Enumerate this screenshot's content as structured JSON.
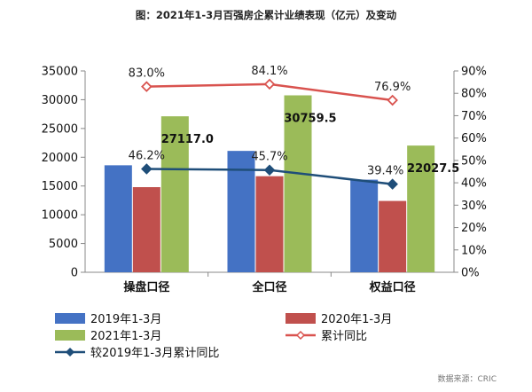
{
  "chart_data": {
    "type": "bar",
    "title": "图：2021年1-3月百强房企累计业绩表现（亿元）及变动",
    "categories": [
      "操盘口径",
      "全口径",
      "权益口径"
    ],
    "series": [
      {
        "name": "2019年1-3月",
        "kind": "bar",
        "axis": "left",
        "color": "#4472C4",
        "values": [
          18600,
          21100,
          16100
        ]
      },
      {
        "name": "2020年1-3月",
        "kind": "bar",
        "axis": "left",
        "color": "#C0504D",
        "values": [
          14800,
          16700,
          12400
        ]
      },
      {
        "name": "2021年1-3月",
        "kind": "bar",
        "axis": "left",
        "color": "#9BBB59",
        "values": [
          27117.0,
          30759.5,
          22027.5
        ],
        "labels": [
          "27117.0",
          "30759.5",
          "22027.5"
        ]
      },
      {
        "name": "累计同比",
        "kind": "line",
        "axis": "right",
        "color": "#D9534F",
        "marker": "diamond-open",
        "values": [
          83.0,
          84.1,
          76.9
        ],
        "labels": [
          "83.0%",
          "84.1%",
          "76.9%"
        ]
      },
      {
        "name": "较2019年1-3月累计同比",
        "kind": "line",
        "axis": "right",
        "color": "#1F4E79",
        "marker": "diamond-filled",
        "values": [
          46.2,
          45.7,
          39.4
        ],
        "labels": [
          "46.2%",
          "45.7%",
          "39.4%"
        ]
      }
    ],
    "y_left": {
      "min": 0,
      "max": 35000,
      "ticks": [
        "0",
        "5000",
        "10000",
        "15000",
        "20000",
        "25000",
        "30000",
        "35000"
      ]
    },
    "y_right": {
      "min": 0,
      "max": 90,
      "unit": "%",
      "ticks": [
        "0%",
        "10%",
        "20%",
        "30%",
        "40%",
        "50%",
        "60%",
        "70%",
        "80%",
        "90%"
      ]
    },
    "legend_position": "bottom",
    "gridlines": false
  },
  "source": "数据来源：CRIC"
}
